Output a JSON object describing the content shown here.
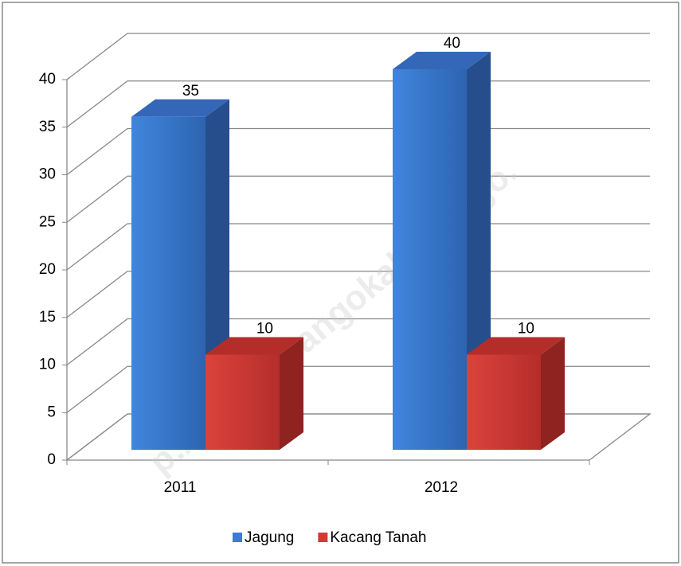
{
  "chart_data": {
    "type": "bar3d",
    "categories": [
      "2011",
      "2012"
    ],
    "series": [
      {
        "name": "Jagung",
        "color": "#3a7bd5",
        "values": [
          35,
          40
        ]
      },
      {
        "name": "Kacang Tanah",
        "color": "#d43a35",
        "values": [
          10,
          10
        ]
      }
    ],
    "ylim": [
      0,
      40
    ],
    "yticks": [
      0,
      5,
      10,
      15,
      20,
      25,
      30,
      35,
      40
    ],
    "grid": true,
    "legend": "bottom",
    "watermark": "p://bonebolangokab.bps.go."
  }
}
